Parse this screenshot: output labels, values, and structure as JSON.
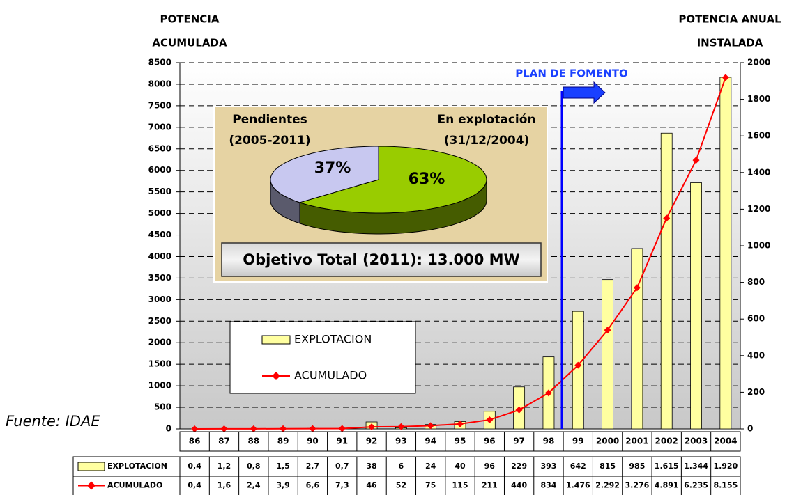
{
  "chart_data": [
    {
      "type": "bar",
      "y_title": [
        "POTENCIA",
        "ACUMULADA"
      ],
      "y2_title": [
        "POTENCIA ANUAL",
        "INSTALADA"
      ],
      "categories": [
        "86",
        "87",
        "88",
        "89",
        "90",
        "91",
        "92",
        "93",
        "94",
        "95",
        "96",
        "97",
        "98",
        "99",
        "2000",
        "2001",
        "2002",
        "2003",
        "2004"
      ],
      "series": [
        {
          "name": "EXPLOTACION",
          "type": "bar",
          "axis": "y2",
          "color": "#ffffa0",
          "values": [
            0.4,
            1.2,
            0.8,
            1.5,
            2.7,
            0.7,
            38,
            6,
            24,
            40,
            96,
            229,
            393,
            642,
            815,
            985,
            1615,
            1344,
            1920
          ],
          "value_labels": [
            "0,4",
            "1,2",
            "0,8",
            "1,5",
            "2,7",
            "0,7",
            "38",
            "6",
            "24",
            "40",
            "96",
            "229",
            "393",
            "642",
            "815",
            "985",
            "1.615",
            "1.344",
            "1.920"
          ]
        },
        {
          "name": "ACUMULADO",
          "type": "line",
          "color": "#ff0000",
          "values": [
            0.4,
            1.6,
            2.4,
            3.9,
            6.6,
            7.3,
            46,
            52,
            75,
            115,
            211,
            440,
            834,
            1476,
            2292,
            3276,
            4891,
            6235,
            8155
          ],
          "value_labels": [
            "0,4",
            "1,6",
            "2,4",
            "3,9",
            "6,6",
            "7,3",
            "46",
            "52",
            "75",
            "115",
            "211",
            "440",
            "834",
            "1.476",
            "2.292",
            "3.276",
            "4.891",
            "6.235",
            "8.155"
          ]
        }
      ],
      "ylim": [
        0,
        8500
      ],
      "yticks": [
        0,
        500,
        1000,
        1500,
        2000,
        2500,
        3000,
        3500,
        4000,
        4500,
        5000,
        5500,
        6000,
        6500,
        7000,
        7500,
        8000,
        8500
      ],
      "y2lim": [
        0,
        2000
      ],
      "y2ticks": [
        0,
        200,
        400,
        600,
        800,
        1000,
        1200,
        1400,
        1600,
        1800,
        2000
      ],
      "grid": true,
      "annotation": "PLAN DE FOMENTO",
      "source": "Fuente: IDAE"
    },
    {
      "type": "pie",
      "categories": [
        [
          "Pendientes",
          "(2005-2011)"
        ],
        [
          "En explotación",
          "(31/12/2004)"
        ]
      ],
      "values": [
        37,
        63
      ],
      "value_labels": [
        "37%",
        "63%"
      ],
      "colors": [
        "#c8c8f0",
        "#99cc00"
      ],
      "annotation": "Objetivo Total (2011): 13.000 MW"
    }
  ]
}
